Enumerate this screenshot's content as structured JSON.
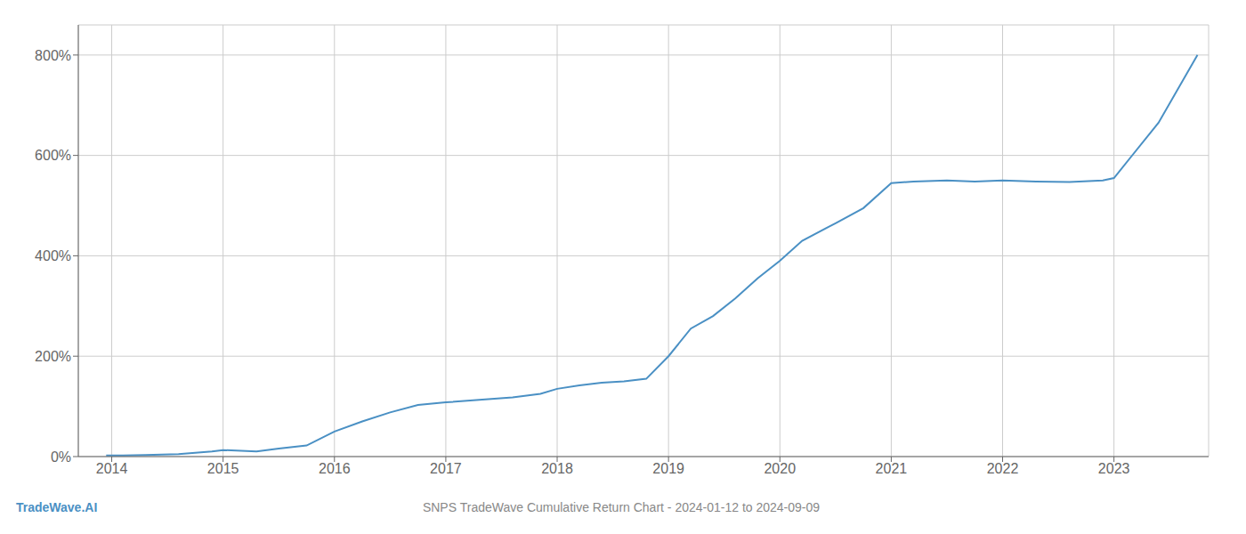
{
  "chart_data": {
    "type": "line",
    "title": "SNPS TradeWave Cumulative Return Chart - 2024-01-12 to 2024-09-09",
    "annotations": [
      "TradeWave.AI"
    ],
    "color": "#4a90c4",
    "x": [
      2013.95,
      2014.1,
      2014.3,
      2014.6,
      2014.9,
      2015.0,
      2015.3,
      2015.5,
      2015.75,
      2016.0,
      2016.25,
      2016.5,
      2016.75,
      2017.0,
      2017.3,
      2017.6,
      2017.85,
      2018.0,
      2018.2,
      2018.4,
      2018.6,
      2018.8,
      2019.0,
      2019.2,
      2019.4,
      2019.6,
      2019.8,
      2020.0,
      2020.2,
      2020.5,
      2020.75,
      2021.0,
      2021.2,
      2021.5,
      2021.75,
      2022.0,
      2022.3,
      2022.6,
      2022.9,
      2023.0,
      2023.4,
      2023.75
    ],
    "values": [
      2,
      2,
      3,
      5,
      10,
      13,
      10,
      16,
      22,
      50,
      70,
      88,
      103,
      108,
      113,
      118,
      125,
      135,
      142,
      147,
      150,
      155,
      200,
      255,
      280,
      315,
      355,
      390,
      430,
      465,
      495,
      545,
      548,
      550,
      548,
      550,
      548,
      547,
      550,
      555,
      665,
      800
    ],
    "xlim": [
      2013.7,
      2023.85
    ],
    "xticks": [
      2014,
      2015,
      2016,
      2017,
      2018,
      2019,
      2020,
      2021,
      2022,
      2023
    ],
    "ylim": [
      0,
      860
    ],
    "yticks": [
      {
        "value": 0,
        "label": "0%"
      },
      {
        "value": 200,
        "label": "200%"
      },
      {
        "value": 400,
        "label": "400%"
      },
      {
        "value": 600,
        "label": "600%"
      },
      {
        "value": 800,
        "label": "800%"
      }
    ],
    "grid": true
  }
}
